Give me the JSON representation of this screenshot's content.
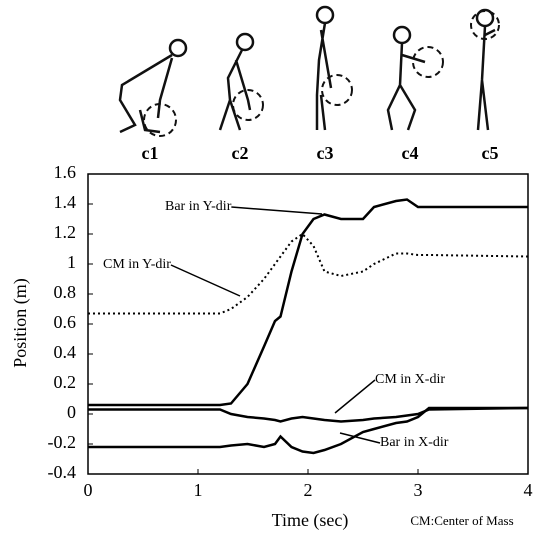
{
  "chart_data": {
    "type": "line",
    "phase_labels": [
      "c1",
      "c2",
      "c3",
      "c4",
      "c5"
    ],
    "xlabel": "Time (sec)",
    "ylabel": "Position (m)",
    "note": "CM:Center of Mass",
    "x": [
      0,
      1,
      1.2,
      1.3,
      1.45,
      1.6,
      1.7,
      1.75,
      1.85,
      1.95,
      2.05,
      2.15,
      2.3,
      2.5,
      2.6,
      2.8,
      2.9,
      3.0,
      3.1,
      4
    ],
    "series": [
      {
        "name": "Bar in Y-dir",
        "color": "#000",
        "style": "solid",
        "values": [
          0.06,
          0.06,
          0.06,
          0.07,
          0.2,
          0.45,
          0.62,
          0.65,
          0.95,
          1.2,
          1.3,
          1.33,
          1.3,
          1.3,
          1.38,
          1.42,
          1.43,
          1.38,
          1.38,
          1.38
        ]
      },
      {
        "name": "CM in Y-dir",
        "color": "#000",
        "style": "dotted",
        "values": [
          0.67,
          0.67,
          0.67,
          0.7,
          0.78,
          0.9,
          1.0,
          1.05,
          1.15,
          1.2,
          1.12,
          0.95,
          0.92,
          0.95,
          1.0,
          1.07,
          1.07,
          1.06,
          1.06,
          1.05
        ]
      },
      {
        "name": "CM in X-dir",
        "color": "#000",
        "style": "solid",
        "values": [
          0.03,
          0.03,
          0.03,
          0.0,
          -0.02,
          -0.03,
          -0.04,
          -0.05,
          -0.03,
          -0.02,
          -0.03,
          -0.04,
          -0.05,
          -0.04,
          -0.03,
          -0.02,
          -0.01,
          0.0,
          0.03,
          0.04
        ]
      },
      {
        "name": "Bar in X-dir",
        "color": "#000",
        "style": "solid",
        "values": [
          -0.22,
          -0.22,
          -0.22,
          -0.21,
          -0.2,
          -0.22,
          -0.2,
          -0.15,
          -0.22,
          -0.25,
          -0.26,
          -0.24,
          -0.2,
          -0.12,
          -0.1,
          -0.06,
          -0.05,
          -0.02,
          0.04,
          0.04
        ]
      }
    ],
    "xlim": [
      0,
      4
    ],
    "xticks": [
      0,
      1,
      2,
      3,
      4
    ],
    "ylim": [
      -0.4,
      1.6
    ],
    "yticks": [
      -0.4,
      -0.2,
      0,
      0.2,
      0.4,
      0.6,
      0.8,
      1,
      1.2,
      1.4,
      1.6
    ]
  }
}
